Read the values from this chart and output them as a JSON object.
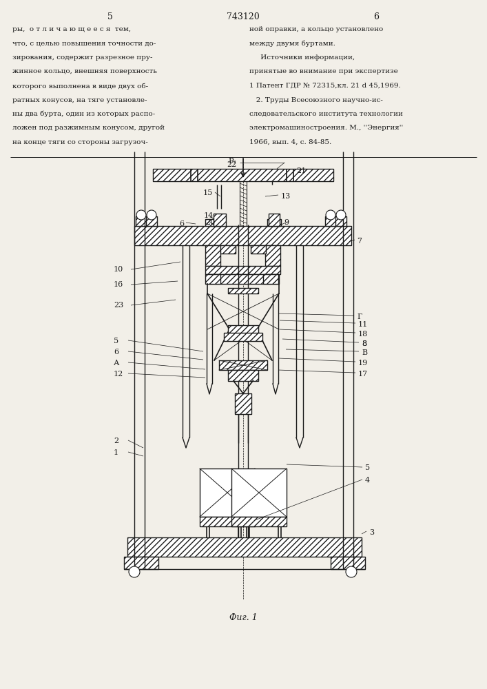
{
  "bg_color": "#f2efe8",
  "line_color": "#1a1a1a",
  "page_num_left": "5",
  "patent_num": "743120",
  "page_num_right": "6",
  "fig_caption": "Фиг. 1",
  "left_col": [
    "ры,  о т л и ч а ю щ е е с я  тем,",
    "что, с целью повышения точности до-",
    "зирования, содержит разрезное пру-",
    "жинное кольцо, внешняя поверхность",
    "которого выполнена в виде двух об-",
    "ратных конусов, на тяге установле-",
    "ны два бурта, один из которых распо-",
    "ложен под разжимным конусом, другой",
    "на конце тяги со стороны загрузоч-"
  ],
  "right_col": [
    "ной оправки, а кольцо установлено",
    "между двумя буртами.",
    "     Источники информации,",
    "принятые во внимание при экспертизе",
    "1 Патент ГДР № 72315,кл. 21 d 45,1969.",
    "   2. Труды Всесоюзного научно-ис-",
    "следовательского института технологии",
    "электромашиностроения. М., ''Энергия''",
    "1966, вып. 4, с. 84-85."
  ]
}
